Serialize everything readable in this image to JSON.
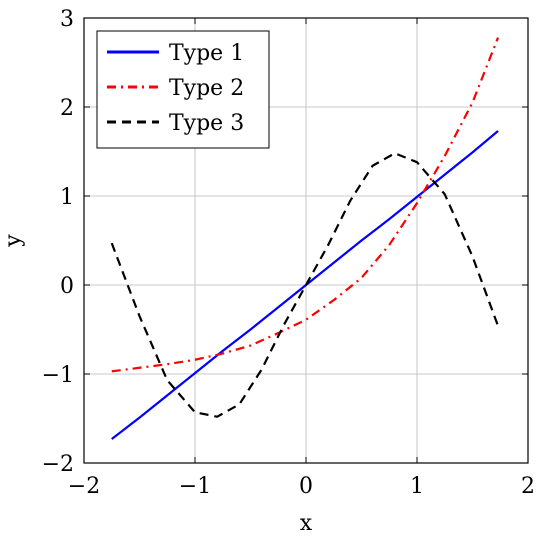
{
  "chart_data": {
    "type": "line",
    "title": "",
    "xlabel": "x",
    "ylabel": "y",
    "xlim": [
      -2,
      2
    ],
    "ylim": [
      -2,
      3
    ],
    "xticks": [
      -2,
      -1,
      0,
      1,
      2
    ],
    "yticks": [
      -2,
      -1,
      0,
      1,
      2,
      3
    ],
    "xtick_labels": [
      "−2",
      "−1",
      "0",
      "1",
      "2"
    ],
    "ytick_labels": [
      "−2",
      "−1",
      "0",
      "1",
      "2",
      "3"
    ],
    "grid": true,
    "legend": "top-left",
    "series": [
      {
        "name": "Type 1",
        "color": "#0000ff",
        "style": "solid",
        "x": [
          -1.75,
          -1.5,
          -1.25,
          -1.0,
          -0.75,
          -0.5,
          -0.25,
          0.0,
          0.25,
          0.5,
          0.75,
          1.0,
          1.25,
          1.5,
          1.73
        ],
        "y": [
          -1.73,
          -1.49,
          -1.24,
          -0.99,
          -0.74,
          -0.5,
          -0.25,
          0.0,
          0.25,
          0.5,
          0.74,
          0.99,
          1.24,
          1.49,
          1.73
        ]
      },
      {
        "name": "Type 2",
        "color": "#ff0000",
        "style": "dash-dot",
        "x": [
          -1.75,
          -1.5,
          -1.25,
          -1.0,
          -0.75,
          -0.5,
          -0.25,
          0.0,
          0.25,
          0.5,
          0.75,
          1.0,
          1.25,
          1.5,
          1.73
        ],
        "y": [
          -0.97,
          -0.93,
          -0.89,
          -0.84,
          -0.77,
          -0.68,
          -0.54,
          -0.39,
          -0.17,
          0.08,
          0.45,
          0.92,
          1.45,
          2.05,
          2.78
        ]
      },
      {
        "name": "Type 3",
        "color": "#000000",
        "style": "dashed",
        "x": [
          -1.75,
          -1.5,
          -1.25,
          -1.0,
          -0.8,
          -0.6,
          -0.4,
          -0.2,
          0.0,
          0.2,
          0.4,
          0.6,
          0.8,
          1.0,
          1.25,
          1.5,
          1.73
        ],
        "y": [
          0.47,
          -0.35,
          -1.07,
          -1.43,
          -1.48,
          -1.34,
          -0.95,
          -0.45,
          0.0,
          0.45,
          0.95,
          1.34,
          1.48,
          1.38,
          1.02,
          0.32,
          -0.46
        ]
      }
    ]
  }
}
